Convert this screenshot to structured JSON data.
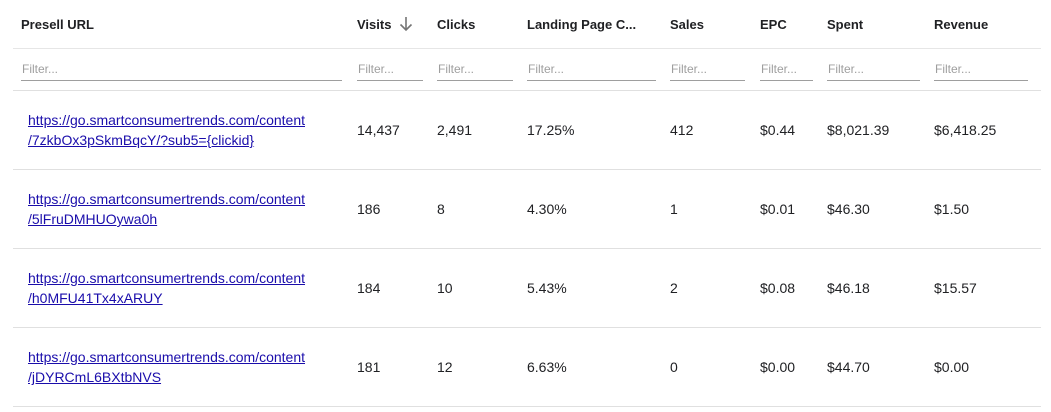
{
  "columns": [
    {
      "key": "presell_url",
      "label": "Presell URL"
    },
    {
      "key": "visits",
      "label": "Visits",
      "sort": "descending",
      "sort_icon": "arrow-down-icon"
    },
    {
      "key": "clicks",
      "label": "Clicks"
    },
    {
      "key": "landing_page_ctr",
      "label": "Landing Page C..."
    },
    {
      "key": "sales",
      "label": "Sales"
    },
    {
      "key": "epc",
      "label": "EPC"
    },
    {
      "key": "spent",
      "label": "Spent"
    },
    {
      "key": "revenue",
      "label": "Revenue"
    }
  ],
  "filters": {
    "placeholder": "Filter...",
    "values": [
      "",
      "",
      "",
      "",
      "",
      "",
      "",
      ""
    ]
  },
  "rows": [
    {
      "url_line1": "https://go.smartconsumertrends.com/content",
      "url_line2": "/7zkbOx3pSkmBqcY/?sub5={clickid}",
      "visits": "14,437",
      "clicks": "2,491",
      "landing_page_ctr": "17.25%",
      "sales": "412",
      "epc": "$0.44",
      "spent": "$8,021.39",
      "revenue": "$6,418.25"
    },
    {
      "url_line1": "https://go.smartconsumertrends.com/content",
      "url_line2": "/5lFruDMHUOywa0h",
      "visits": "186",
      "clicks": "8",
      "landing_page_ctr": "4.30%",
      "sales": "1",
      "epc": "$0.01",
      "spent": "$46.30",
      "revenue": "$1.50"
    },
    {
      "url_line1": "https://go.smartconsumertrends.com/content",
      "url_line2": "/h0MFU41Tx4xARUY",
      "visits": "184",
      "clicks": "10",
      "landing_page_ctr": "5.43%",
      "sales": "2",
      "epc": "$0.08",
      "spent": "$46.18",
      "revenue": "$15.57"
    },
    {
      "url_line1": "https://go.smartconsumertrends.com/content",
      "url_line2": "/jDYRCmL6BXtbNVS",
      "visits": "181",
      "clicks": "12",
      "landing_page_ctr": "6.63%",
      "sales": "0",
      "epc": "$0.00",
      "spent": "$44.70",
      "revenue": "$0.00"
    }
  ],
  "colors": {
    "link": "#1a0dab",
    "text": "#202124",
    "placeholder": "#9e9e9e",
    "divider": "#e0e0e0"
  }
}
